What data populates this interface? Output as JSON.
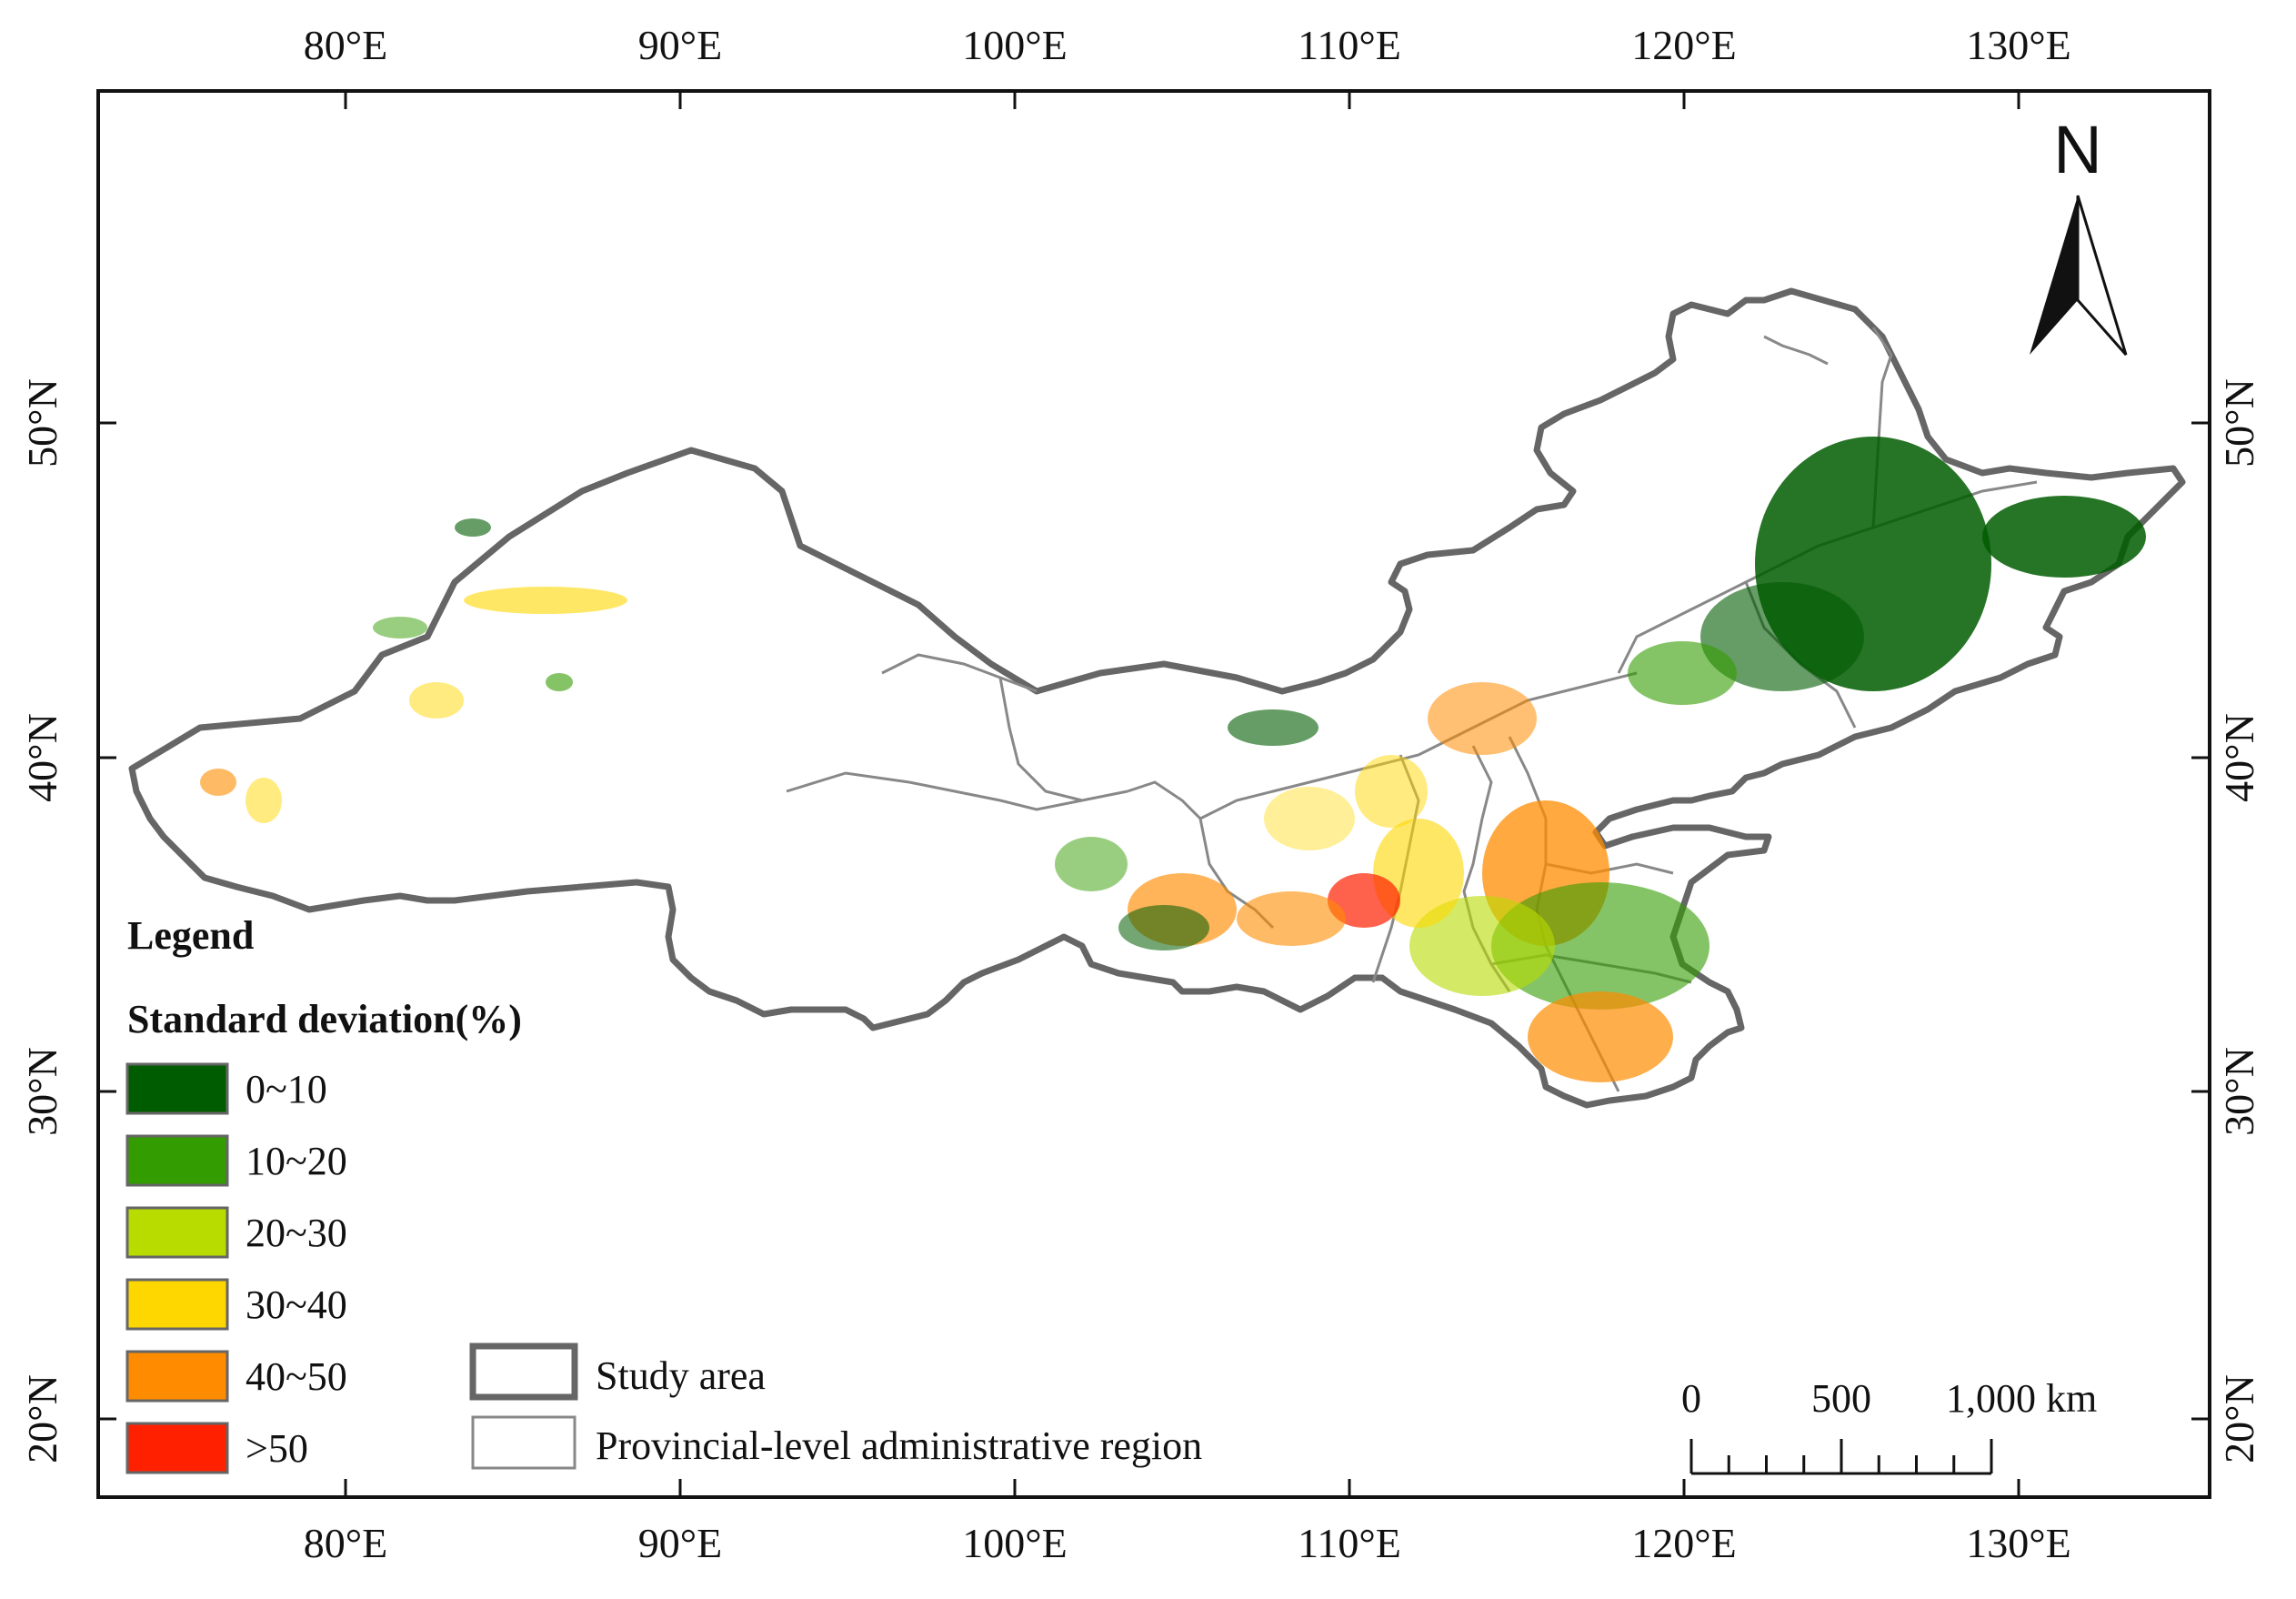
{
  "map": {
    "x_ticks": [
      "80°E",
      "90°E",
      "100°E",
      "110°E",
      "120°E",
      "130°E"
    ],
    "y_ticks": [
      "50°N",
      "40°N",
      "30°N",
      "20°N"
    ]
  },
  "north_arrow": {
    "label": "N"
  },
  "legend": {
    "title": "Legend",
    "subtitle": "Standard deviation(%)",
    "classes": [
      {
        "label": "0~10",
        "color": "#005c00"
      },
      {
        "label": "10~20",
        "color": "#339c00"
      },
      {
        "label": "20~30",
        "color": "#b8dc00"
      },
      {
        "label": "30~40",
        "color": "#ffd700"
      },
      {
        "label": "40~50",
        "color": "#ff8c00"
      },
      {
        "label": ">50",
        "color": "#ff2000"
      }
    ],
    "boundaries": [
      {
        "label": "Study area"
      },
      {
        "label": "Provincial-level administrative region"
      }
    ]
  },
  "scale_bar": {
    "labels": [
      "0",
      "500",
      "1,000 km"
    ]
  },
  "colors": {
    "study_area_outline": "#666666",
    "province_outline": "#888888"
  }
}
